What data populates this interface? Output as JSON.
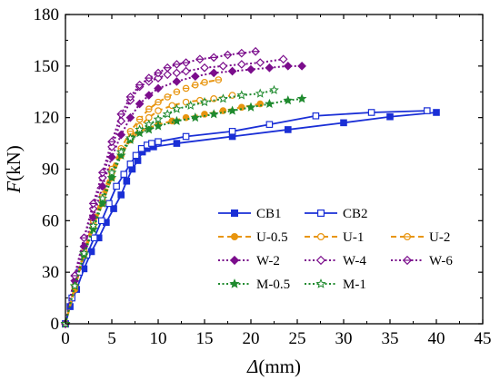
{
  "chart_data": {
    "type": "line",
    "xlabel_symbol": "Δ",
    "xlabel_unit": "(mm)",
    "ylabel_symbol": "F",
    "ylabel_unit": "(kN)",
    "xlim": [
      0,
      45
    ],
    "ylim": [
      0,
      180
    ],
    "xticks": [
      0,
      5,
      10,
      15,
      20,
      25,
      30,
      35,
      40,
      45
    ],
    "yticks": [
      0,
      30,
      60,
      90,
      120,
      150,
      180
    ],
    "grid": false,
    "legend_position": "lower-right",
    "series": [
      {
        "name": "CB1",
        "color": "#1a2fd6",
        "line": "solid",
        "marker": "square-filled",
        "x": [
          0,
          0.5,
          1.2,
          2.0,
          2.8,
          3.6,
          4.4,
          5.2,
          6.0,
          6.6,
          7.2,
          7.8,
          8.3,
          8.8,
          9.5,
          12,
          18,
          24,
          30,
          35,
          40
        ],
        "y": [
          0,
          10,
          20,
          32,
          42,
          50,
          59,
          67,
          75,
          83,
          90,
          95,
          100,
          102,
          103,
          105,
          109,
          113,
          117,
          120.5,
          123
        ]
      },
      {
        "name": "CB2",
        "color": "#1a2fd6",
        "line": "solid",
        "marker": "square-open",
        "x": [
          0,
          0.7,
          1.5,
          2.3,
          3.1,
          3.9,
          4.7,
          5.5,
          6.3,
          7.0,
          7.6,
          8.2,
          8.8,
          9.3,
          10.0,
          13,
          18,
          22,
          27,
          33,
          39
        ],
        "y": [
          0,
          15,
          30,
          40,
          50,
          60,
          70,
          80,
          87,
          93,
          98,
          102,
          104,
          105,
          106,
          109,
          112,
          116,
          121,
          123,
          124
        ]
      },
      {
        "name": "U-0.5",
        "color": "#e8950f",
        "line": "dashed",
        "marker": "circle-filled",
        "x": [
          0,
          1,
          2,
          3,
          4,
          5,
          6,
          7,
          8,
          9,
          10,
          11.5,
          13,
          15,
          17,
          19,
          21
        ],
        "y": [
          0,
          20,
          40,
          56,
          70,
          85,
          98,
          107,
          112,
          114,
          116,
          118,
          120,
          122,
          124,
          126,
          128
        ]
      },
      {
        "name": "U-1",
        "color": "#e8950f",
        "line": "dashed",
        "marker": "circle-open",
        "x": [
          0,
          1,
          2,
          3,
          4,
          5,
          6,
          7,
          8,
          9,
          10,
          11.5,
          13,
          14.5,
          16,
          18
        ],
        "y": [
          0,
          22,
          42,
          58,
          72,
          88,
          100,
          108,
          115,
          120,
          124,
          127,
          129,
          130,
          131,
          133
        ]
      },
      {
        "name": "U-2",
        "color": "#e8950f",
        "line": "dashed",
        "marker": "circle-half",
        "x": [
          0,
          1,
          2,
          3,
          4,
          5,
          6,
          7,
          8,
          9,
          10,
          11,
          12,
          13,
          14,
          15,
          16.5
        ],
        "y": [
          0,
          22,
          42,
          60,
          75,
          90,
          102,
          112,
          119,
          125,
          129,
          132,
          135,
          137,
          139,
          140.5,
          142
        ]
      },
      {
        "name": "W-2",
        "color": "#7b0d8c",
        "line": "dotted",
        "marker": "diamond-filled",
        "x": [
          0,
          1,
          2,
          3,
          4,
          5,
          6,
          7,
          8,
          9,
          10,
          12,
          14,
          16,
          18,
          20,
          22,
          24,
          25.5
        ],
        "y": [
          0,
          25,
          45,
          62,
          80,
          97,
          110,
          120,
          128,
          133,
          137,
          141,
          144,
          146,
          147,
          148,
          149,
          150,
          150
        ]
      },
      {
        "name": "W-4",
        "color": "#7b0d8c",
        "line": "dotted",
        "marker": "diamond-open",
        "x": [
          0,
          1,
          2,
          3,
          4,
          5,
          6,
          7,
          8,
          9,
          10,
          11,
          12,
          13,
          15,
          17,
          19,
          21,
          23.5
        ],
        "y": [
          0,
          28,
          50,
          67,
          85,
          103,
          118,
          130,
          138,
          141,
          143,
          145,
          146,
          147,
          149,
          150,
          151,
          152,
          154
        ]
      },
      {
        "name": "W-6",
        "color": "#7b0d8c",
        "line": "dotted",
        "marker": "diamond-half",
        "x": [
          0,
          1,
          2,
          3,
          4,
          5,
          6,
          7,
          8,
          9,
          10,
          11,
          12,
          13,
          14.5,
          16,
          17.5,
          19,
          20.5
        ],
        "y": [
          0,
          28,
          50,
          70,
          88,
          106,
          122,
          132,
          139,
          143,
          146,
          149,
          151,
          152,
          154,
          155,
          156.5,
          157.5,
          158.5
        ]
      },
      {
        "name": "M-0.5",
        "color": "#1f8a2e",
        "line": "dotted",
        "marker": "star-filled",
        "x": [
          0,
          1,
          2,
          3,
          4,
          5,
          6,
          7,
          8,
          9,
          10,
          12,
          14,
          16,
          18,
          20,
          22,
          24,
          25.5
        ],
        "y": [
          0,
          22,
          40,
          55,
          70,
          85,
          98,
          107,
          111,
          113,
          115,
          118,
          120,
          122,
          124,
          126,
          128,
          130,
          131
        ]
      },
      {
        "name": "M-1",
        "color": "#1f8a2e",
        "line": "dotted",
        "marker": "star-open",
        "x": [
          0,
          1,
          2,
          3,
          4,
          5,
          6,
          7,
          8,
          9,
          10,
          11,
          12,
          13.5,
          15,
          17,
          19,
          21,
          22.5
        ],
        "y": [
          0,
          22,
          41,
          57,
          73,
          88,
          100,
          108,
          113,
          116,
          119,
          122,
          125,
          127,
          129,
          131,
          133,
          134,
          136
        ]
      }
    ]
  }
}
